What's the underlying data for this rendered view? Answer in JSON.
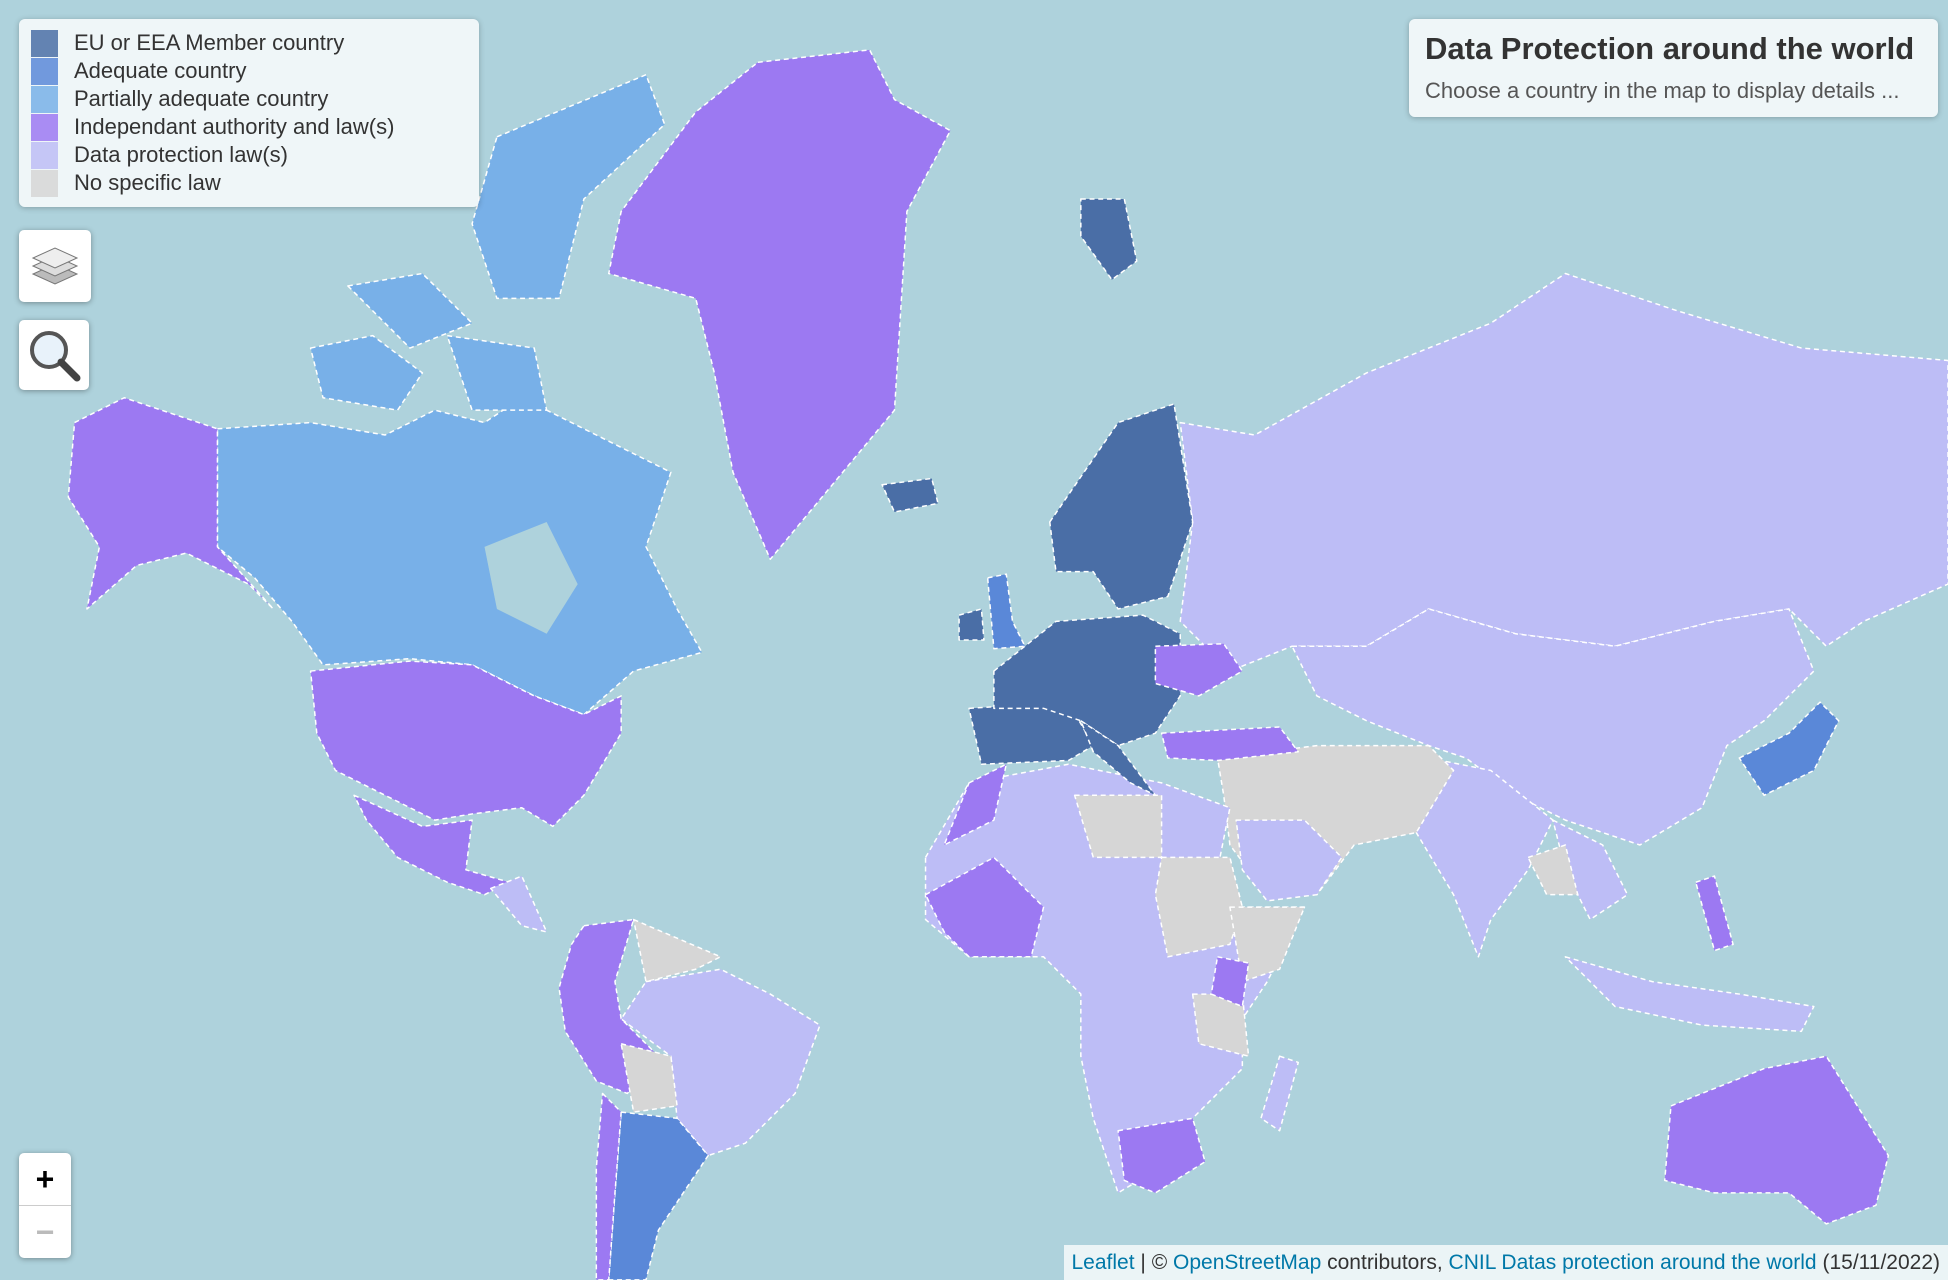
{
  "legend": [
    {
      "label": "EU or EEA Member country",
      "color": "#4a6ea6"
    },
    {
      "label": "Adequate country",
      "color": "#5a88d8"
    },
    {
      "label": "Partially adequate country",
      "color": "#78b0e8"
    },
    {
      "label": "Independant authority and law(s)",
      "color": "#9c79f2"
    },
    {
      "label": "Data protection law(s)",
      "color": "#bdbdf6"
    },
    {
      "label": "No specific law",
      "color": "#d6d6d6"
    }
  ],
  "info": {
    "title": "Data Protection around the world",
    "text": "Choose a country in the map to display details ..."
  },
  "zoom": {
    "in": "+",
    "out": "−"
  },
  "attribution": {
    "leaflet": "Leaflet",
    "separator": "| ©",
    "osm": "OpenStreetMap",
    "contributors": "contributors,",
    "cnil": "CNIL Datas protection around the world",
    "date": "(15/11/2022)"
  }
}
